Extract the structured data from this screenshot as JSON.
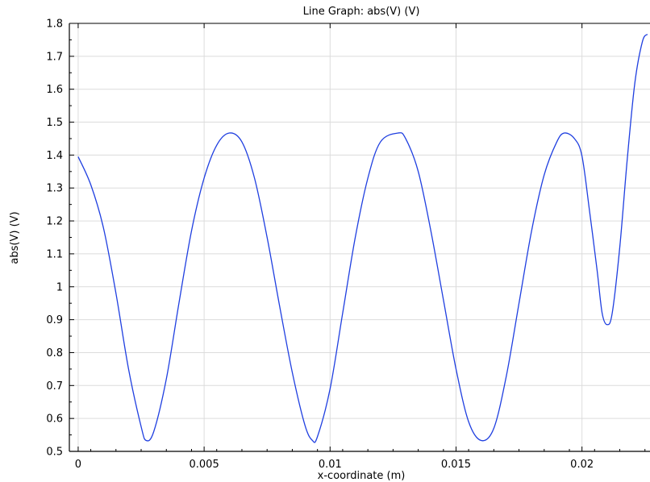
{
  "chart_data": {
    "type": "line",
    "title": "Line Graph: abs(V) (V)",
    "xlabel": "x-coordinate (m)",
    "ylabel": "abs(V) (V)",
    "xlim": [
      -0.00035,
      0.0227
    ],
    "ylim": [
      0.5,
      1.8
    ],
    "grid": true,
    "x_ticks": [
      0,
      0.005,
      0.01,
      0.015,
      0.02
    ],
    "x_tick_labels": [
      "0",
      "0.005",
      "0.01",
      "0.015",
      "0.02"
    ],
    "y_ticks": [
      0.5,
      0.6,
      0.7,
      0.8,
      0.9,
      1.0,
      1.1,
      1.2,
      1.3,
      1.4,
      1.5,
      1.6,
      1.7,
      1.8
    ],
    "y_tick_labels": [
      "0.5",
      "0.6",
      "0.7",
      "0.8",
      "0.9",
      "1",
      "1.1",
      "1.2",
      "1.3",
      "1.4",
      "1.5",
      "1.6",
      "1.7",
      "1.8"
    ],
    "line_color": "#1f3fe0",
    "series": [
      {
        "x": [
          0,
          0.0005,
          0.001,
          0.0015,
          0.002,
          0.0025,
          0.0027,
          0.003,
          0.0035,
          0.004,
          0.0045,
          0.005,
          0.0055,
          0.006,
          0.0065,
          0.007,
          0.0075,
          0.008,
          0.0085,
          0.009,
          0.0093,
          0.0095,
          0.01,
          0.0105,
          0.011,
          0.0115,
          0.012,
          0.0127,
          0.013,
          0.0135,
          0.014,
          0.0145,
          0.015,
          0.0155,
          0.016,
          0.0165,
          0.017,
          0.0175,
          0.018,
          0.0185,
          0.019,
          0.0193,
          0.0197,
          0.02,
          0.0203,
          0.0206,
          0.0208,
          0.021,
          0.0212,
          0.0215,
          0.0218,
          0.0221,
          0.0224,
          0.0226
        ],
        "y": [
          1.395,
          1.31,
          1.18,
          0.98,
          0.75,
          0.575,
          0.533,
          0.56,
          0.72,
          0.95,
          1.17,
          1.33,
          1.43,
          1.467,
          1.44,
          1.33,
          1.15,
          0.94,
          0.74,
          0.58,
          0.533,
          0.545,
          0.69,
          0.92,
          1.15,
          1.33,
          1.44,
          1.467,
          1.45,
          1.35,
          1.17,
          0.96,
          0.75,
          0.59,
          0.533,
          0.57,
          0.73,
          0.95,
          1.17,
          1.34,
          1.44,
          1.467,
          1.45,
          1.397,
          1.23,
          1.05,
          0.92,
          0.885,
          0.92,
          1.12,
          1.39,
          1.62,
          1.745,
          1.767
        ]
      }
    ]
  }
}
